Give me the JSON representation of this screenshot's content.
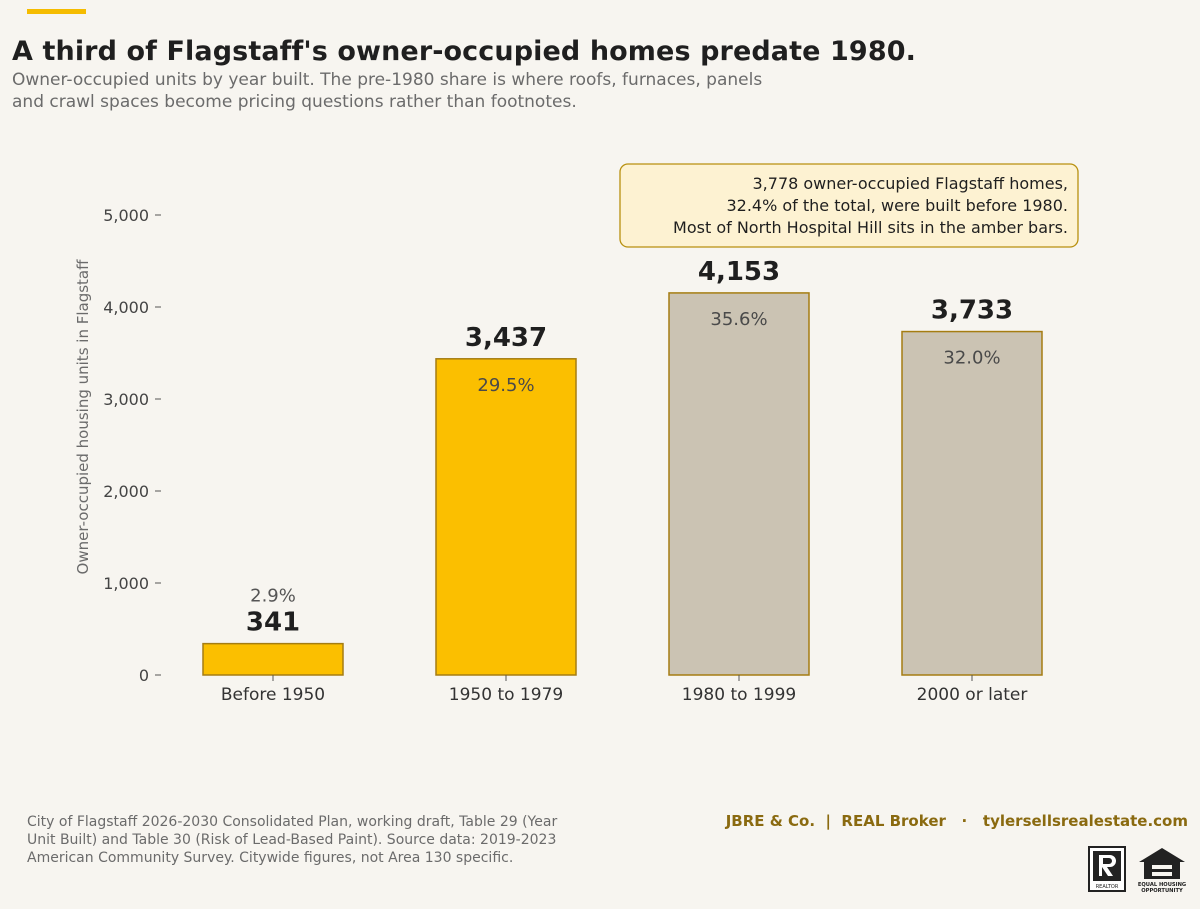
{
  "header": {
    "title": "A third of Flagstaff's owner-occupied homes predate 1980.",
    "subtitle_line1": "Owner-occupied units by year built. The pre-1980 share is where roofs, furnaces, panels",
    "subtitle_line2": "and crawl spaces become pricing questions rather than footnotes."
  },
  "colors": {
    "accent": "#f5bc00",
    "pre1980_fill": "#fbbf00",
    "post1980_fill": "#cbc3b3",
    "bar_edge": "#a57d12",
    "annotation_bg": "#fdf2d2",
    "annotation_border": "#b8900f",
    "brand_text": "#8a6a10"
  },
  "chart_data": {
    "type": "bar",
    "categories": [
      "Before 1950",
      "1950 to 1979",
      "1980 to 1999",
      "2000 or later"
    ],
    "values": [
      341,
      3437,
      4153,
      3733
    ],
    "value_labels": [
      "341",
      "3,437",
      "4,153",
      "3,733"
    ],
    "share_labels": [
      "2.9%",
      "29.5%",
      "35.6%",
      "32.0%"
    ],
    "highlight": [
      "pre-1980",
      "pre-1980",
      "post-1980",
      "post-1980"
    ],
    "ylabel": "Owner-occupied housing units in Flagstaff",
    "xlabel": "",
    "ylim": [
      0,
      5000
    ],
    "yticks": [
      0,
      1000,
      2000,
      3000,
      4000,
      5000
    ],
    "ytick_labels": [
      "0",
      "1,000",
      "2,000",
      "3,000",
      "4,000",
      "5,000"
    ],
    "grid": false,
    "annotation": [
      "3,778 owner-occupied Flagstaff homes,",
      "32.4% of the total, were built before 1980.",
      "Most of North Hospital Hill sits in the amber bars."
    ]
  },
  "footer": {
    "source_line1": "City of Flagstaff 2026-2030 Consolidated Plan, working draft, Table 29 (Year",
    "source_line2": "Unit Built) and Table 30 (Risk of Lead-Based Paint). Source data: 2019-2023",
    "source_line3": "American Community Survey. Citywide figures, not Area 130 specific.",
    "brand": "JBRE & Co.  |  REAL Broker   ·   tylersellsrealestate.com",
    "realtor_logo_text": "REALTOR",
    "equal_housing_text": "EQUAL HOUSING OPPORTUNITY"
  }
}
